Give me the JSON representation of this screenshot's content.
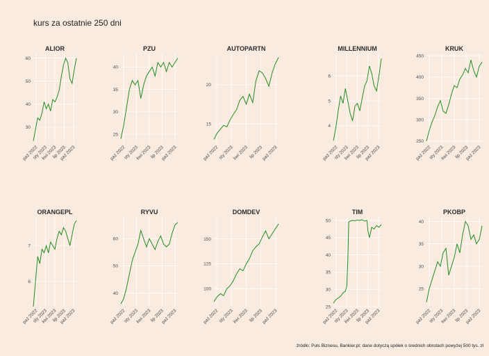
{
  "page": {
    "title": "kurs za ostatnie 250 dni",
    "source": "źródło: Puls Biznesu, Bankier.pl; dane dotyczą spółek o średnich obrotach powyżej 500 tys. zł"
  },
  "colors": {
    "background": "#f9ebdf",
    "grid": "#ffffff",
    "line": "#228b22"
  },
  "chart_data": [
    {
      "type": "line",
      "title": "ALIOR",
      "x_ticks": [
        "paź 2022",
        "sty 2023",
        "kwi 2023",
        "lip 2023",
        "paź 2023"
      ],
      "y_ticks": [
        30,
        40,
        50,
        60
      ],
      "ylim": [
        23,
        62
      ],
      "points": [
        [
          0,
          24
        ],
        [
          0.05,
          29
        ],
        [
          0.1,
          34
        ],
        [
          0.15,
          33
        ],
        [
          0.2,
          36
        ],
        [
          0.25,
          41
        ],
        [
          0.3,
          38
        ],
        [
          0.35,
          40
        ],
        [
          0.4,
          37
        ],
        [
          0.45,
          42
        ],
        [
          0.5,
          41
        ],
        [
          0.55,
          43
        ],
        [
          0.6,
          46
        ],
        [
          0.65,
          52
        ],
        [
          0.7,
          57
        ],
        [
          0.75,
          60
        ],
        [
          0.8,
          58
        ],
        [
          0.85,
          51
        ],
        [
          0.9,
          49
        ],
        [
          0.95,
          55
        ],
        [
          1,
          60
        ]
      ]
    },
    {
      "type": "line",
      "title": "PZU",
      "x_ticks": [
        "paź 2022",
        "sty 2023",
        "kwi 2023",
        "lip 2023",
        "paź 2023"
      ],
      "y_ticks": [
        25,
        30,
        35,
        40
      ],
      "ylim": [
        23,
        43
      ],
      "points": [
        [
          0,
          24
        ],
        [
          0.05,
          27
        ],
        [
          0.1,
          31
        ],
        [
          0.15,
          35
        ],
        [
          0.2,
          37
        ],
        [
          0.25,
          36
        ],
        [
          0.3,
          37
        ],
        [
          0.35,
          33
        ],
        [
          0.4,
          36
        ],
        [
          0.45,
          38
        ],
        [
          0.5,
          39
        ],
        [
          0.55,
          40
        ],
        [
          0.6,
          38
        ],
        [
          0.65,
          41
        ],
        [
          0.7,
          40
        ],
        [
          0.75,
          41
        ],
        [
          0.8,
          39
        ],
        [
          0.85,
          41
        ],
        [
          0.9,
          40
        ],
        [
          0.95,
          41
        ],
        [
          1,
          42
        ]
      ]
    },
    {
      "type": "line",
      "title": "AUTOPARTN",
      "x_ticks": [
        "paź 2022",
        "sty 2023",
        "kwi 2023",
        "lip 2023",
        "paź 2023"
      ],
      "y_ticks": [
        15,
        20
      ],
      "ylim": [
        12.5,
        24
      ],
      "points": [
        [
          0,
          13
        ],
        [
          0.05,
          13.8
        ],
        [
          0.1,
          14.3
        ],
        [
          0.15,
          14.8
        ],
        [
          0.2,
          14.6
        ],
        [
          0.25,
          15.5
        ],
        [
          0.3,
          16.2
        ],
        [
          0.35,
          16.8
        ],
        [
          0.4,
          18
        ],
        [
          0.45,
          18.5
        ],
        [
          0.5,
          17.5
        ],
        [
          0.55,
          18.8
        ],
        [
          0.6,
          17.7
        ],
        [
          0.65,
          20.5
        ],
        [
          0.7,
          21.8
        ],
        [
          0.75,
          21.5
        ],
        [
          0.8,
          20.8
        ],
        [
          0.85,
          19.8
        ],
        [
          0.9,
          21.5
        ],
        [
          0.95,
          22.7
        ],
        [
          1,
          23.5
        ]
      ]
    },
    {
      "type": "line",
      "title": "MILLENNIUM",
      "x_ticks": [
        "paź 2022",
        "sty 2023",
        "kwi 2023",
        "lip 2023",
        "paź 2023"
      ],
      "y_ticks": [
        4,
        5,
        6
      ],
      "ylim": [
        3.3,
        6.9
      ],
      "points": [
        [
          0,
          3.4
        ],
        [
          0.05,
          3.9
        ],
        [
          0.1,
          4.6
        ],
        [
          0.15,
          5.2
        ],
        [
          0.2,
          4.9
        ],
        [
          0.25,
          5.5
        ],
        [
          0.3,
          5.0
        ],
        [
          0.35,
          4.5
        ],
        [
          0.4,
          4.2
        ],
        [
          0.45,
          4.8
        ],
        [
          0.5,
          4.9
        ],
        [
          0.55,
          4.6
        ],
        [
          0.6,
          5.1
        ],
        [
          0.65,
          5.6
        ],
        [
          0.7,
          5.8
        ],
        [
          0.75,
          6.4
        ],
        [
          0.8,
          6.1
        ],
        [
          0.85,
          5.6
        ],
        [
          0.9,
          5.4
        ],
        [
          0.95,
          6.0
        ],
        [
          1,
          6.7
        ]
      ]
    },
    {
      "type": "line",
      "title": "KRUK",
      "x_ticks": [
        "paź 2022",
        "sty 2023",
        "kwi 2023",
        "lip 2023",
        "paź 2023"
      ],
      "y_ticks": [
        250,
        300,
        350,
        400,
        450
      ],
      "ylim": [
        245,
        455
      ],
      "points": [
        [
          0,
          250
        ],
        [
          0.05,
          275
        ],
        [
          0.1,
          295
        ],
        [
          0.15,
          310
        ],
        [
          0.2,
          330
        ],
        [
          0.25,
          345
        ],
        [
          0.3,
          320
        ],
        [
          0.35,
          315
        ],
        [
          0.4,
          335
        ],
        [
          0.45,
          360
        ],
        [
          0.5,
          380
        ],
        [
          0.55,
          375
        ],
        [
          0.6,
          395
        ],
        [
          0.65,
          405
        ],
        [
          0.7,
          420
        ],
        [
          0.75,
          410
        ],
        [
          0.8,
          440
        ],
        [
          0.85,
          415
        ],
        [
          0.9,
          400
        ],
        [
          0.95,
          425
        ],
        [
          1,
          435
        ]
      ]
    },
    {
      "type": "line",
      "title": "ORANGEPL",
      "x_ticks": [
        "paź 2022",
        "sty 2023",
        "kwi 2023",
        "lip 2023",
        "paź 2023"
      ],
      "y_ticks": [
        6,
        7
      ],
      "ylim": [
        5.3,
        7.8
      ],
      "points": [
        [
          0,
          5.3
        ],
        [
          0.05,
          6.0
        ],
        [
          0.1,
          6.7
        ],
        [
          0.15,
          6.5
        ],
        [
          0.2,
          6.9
        ],
        [
          0.25,
          6.8
        ],
        [
          0.3,
          7.0
        ],
        [
          0.35,
          6.8
        ],
        [
          0.4,
          7.1
        ],
        [
          0.45,
          7.0
        ],
        [
          0.5,
          6.9
        ],
        [
          0.55,
          7.2
        ],
        [
          0.6,
          7.4
        ],
        [
          0.65,
          7.3
        ],
        [
          0.7,
          7.5
        ],
        [
          0.75,
          7.4
        ],
        [
          0.8,
          7.2
        ],
        [
          0.85,
          7.0
        ],
        [
          0.9,
          7.3
        ],
        [
          0.95,
          7.6
        ],
        [
          1,
          7.7
        ]
      ]
    },
    {
      "type": "line",
      "title": "RYVU",
      "x_ticks": [
        "paź 2022",
        "sty 2023",
        "kwi 2023",
        "lip 2023",
        "paź 2023"
      ],
      "y_ticks": [
        40,
        50,
        60
      ],
      "ylim": [
        35,
        68
      ],
      "points": [
        [
          0,
          36
        ],
        [
          0.05,
          38
        ],
        [
          0.1,
          42
        ],
        [
          0.15,
          47
        ],
        [
          0.2,
          52
        ],
        [
          0.25,
          55
        ],
        [
          0.3,
          58
        ],
        [
          0.35,
          63
        ],
        [
          0.4,
          60
        ],
        [
          0.45,
          57
        ],
        [
          0.5,
          60
        ],
        [
          0.55,
          58
        ],
        [
          0.6,
          56
        ],
        [
          0.65,
          59
        ],
        [
          0.7,
          61
        ],
        [
          0.75,
          58
        ],
        [
          0.8,
          57
        ],
        [
          0.85,
          58
        ],
        [
          0.9,
          62
        ],
        [
          0.95,
          65
        ],
        [
          1,
          66
        ]
      ]
    },
    {
      "type": "line",
      "title": "DOMDEV",
      "x_ticks": [
        "paź 2022",
        "sty 2023",
        "kwi 2023",
        "lip 2023",
        "paź 2023"
      ],
      "y_ticks": [
        100,
        125,
        150
      ],
      "ylim": [
        82,
        172
      ],
      "points": [
        [
          0,
          87
        ],
        [
          0.05,
          92
        ],
        [
          0.1,
          95
        ],
        [
          0.15,
          93
        ],
        [
          0.2,
          100
        ],
        [
          0.25,
          103
        ],
        [
          0.3,
          108
        ],
        [
          0.35,
          115
        ],
        [
          0.4,
          120
        ],
        [
          0.45,
          118
        ],
        [
          0.5,
          125
        ],
        [
          0.55,
          130
        ],
        [
          0.6,
          138
        ],
        [
          0.65,
          142
        ],
        [
          0.7,
          145
        ],
        [
          0.75,
          152
        ],
        [
          0.8,
          158
        ],
        [
          0.85,
          150
        ],
        [
          0.9,
          155
        ],
        [
          0.95,
          160
        ],
        [
          1,
          165
        ]
      ]
    },
    {
      "type": "line",
      "title": "TIM",
      "x_ticks": [
        "paź 2022",
        "sty 2023",
        "kwi 2023",
        "lip 2023",
        "paź 2023"
      ],
      "y_ticks": [
        25,
        30,
        35,
        40,
        45,
        50
      ],
      "ylim": [
        25,
        51
      ],
      "points": [
        [
          0,
          26
        ],
        [
          0.05,
          27
        ],
        [
          0.1,
          27.5
        ],
        [
          0.15,
          28
        ],
        [
          0.2,
          29
        ],
        [
          0.25,
          29.5
        ],
        [
          0.28,
          31
        ],
        [
          0.3,
          38
        ],
        [
          0.32,
          49.5
        ],
        [
          0.35,
          49.8
        ],
        [
          0.4,
          50
        ],
        [
          0.45,
          49.9
        ],
        [
          0.5,
          50.1
        ],
        [
          0.55,
          50
        ],
        [
          0.6,
          50.2
        ],
        [
          0.65,
          49.8
        ],
        [
          0.7,
          50
        ],
        [
          0.72,
          47
        ],
        [
          0.75,
          45
        ],
        [
          0.8,
          48
        ],
        [
          0.85,
          47.5
        ],
        [
          0.9,
          48.5
        ],
        [
          0.95,
          48
        ],
        [
          1,
          48.8
        ]
      ]
    },
    {
      "type": "line",
      "title": "PKOBP",
      "x_ticks": [
        "paź 2022",
        "sty 2023",
        "kwi 2023",
        "lip 2023",
        "paź 2023"
      ],
      "y_ticks": [
        25,
        30,
        35,
        40
      ],
      "ylim": [
        21,
        41
      ],
      "points": [
        [
          0,
          22
        ],
        [
          0.05,
          25
        ],
        [
          0.1,
          27
        ],
        [
          0.15,
          29
        ],
        [
          0.2,
          31
        ],
        [
          0.25,
          30
        ],
        [
          0.3,
          33
        ],
        [
          0.35,
          34
        ],
        [
          0.4,
          28
        ],
        [
          0.45,
          30
        ],
        [
          0.5,
          32
        ],
        [
          0.55,
          35
        ],
        [
          0.6,
          33
        ],
        [
          0.65,
          37
        ],
        [
          0.7,
          40
        ],
        [
          0.75,
          39
        ],
        [
          0.8,
          36
        ],
        [
          0.85,
          37
        ],
        [
          0.9,
          35
        ],
        [
          0.95,
          36
        ],
        [
          1,
          39
        ]
      ]
    }
  ]
}
